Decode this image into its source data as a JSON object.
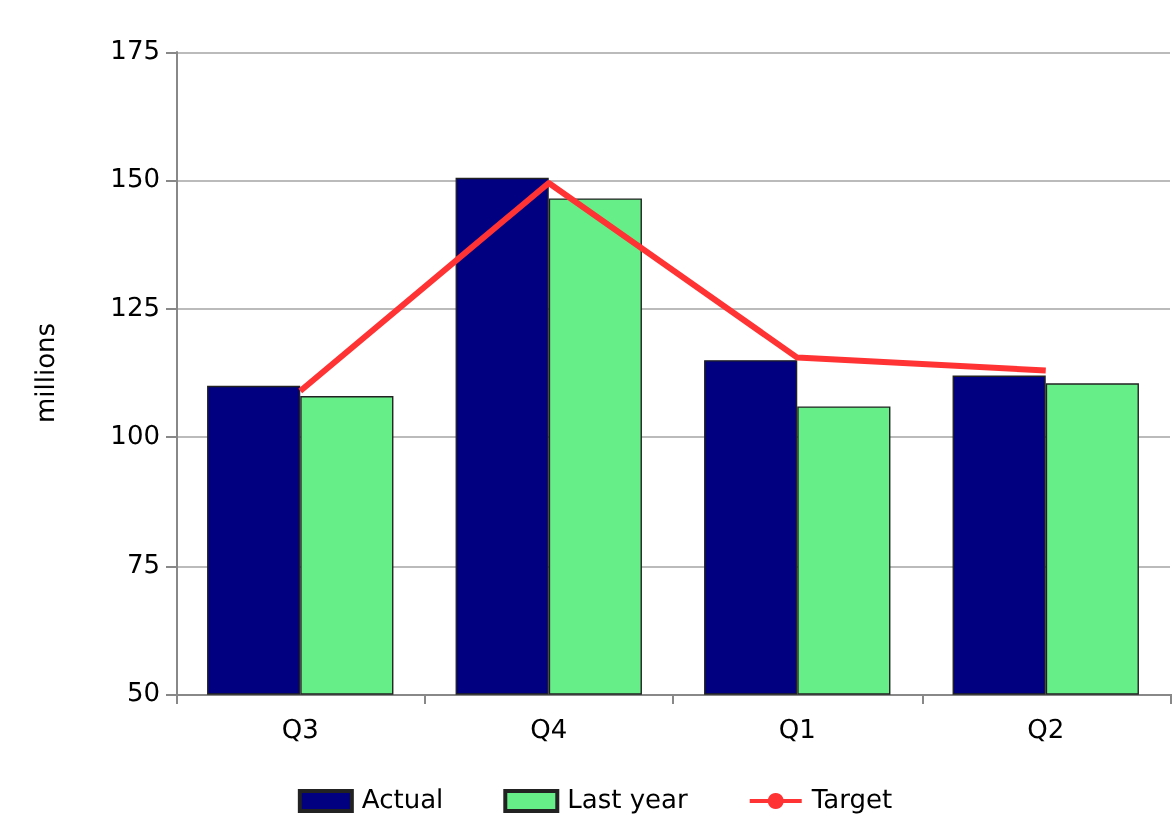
{
  "chart_data": {
    "type": "bar",
    "ylabel": "millions",
    "categories": [
      "Q3",
      "Q4",
      "Q1",
      "Q2"
    ],
    "series": [
      {
        "name": "Actual",
        "color": "#000080",
        "values": [
          110,
          150.5,
          115,
          112
        ]
      },
      {
        "name": "Last year",
        "color": "#66ee88",
        "values": [
          108,
          146.5,
          106,
          110.5
        ]
      },
      {
        "name": "Target",
        "type": "line",
        "color": "#ff3333",
        "values": [
          109,
          149.5,
          115.5,
          113
        ]
      }
    ],
    "ylim": [
      50,
      175
    ],
    "yticks": [
      50,
      75,
      100,
      125,
      150,
      175
    ],
    "grid": "y",
    "legend": "bottom",
    "marker": "none"
  }
}
